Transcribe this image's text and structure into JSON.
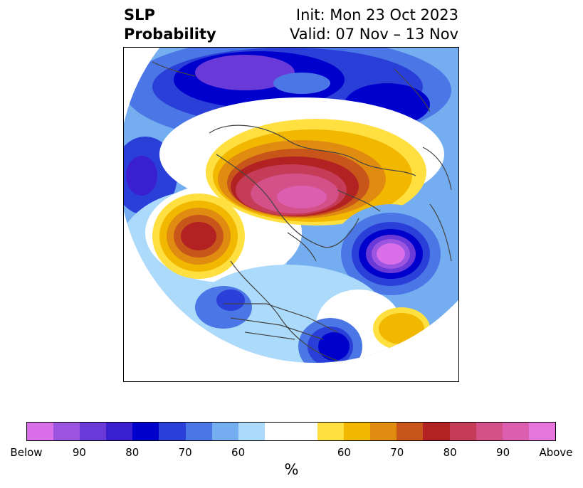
{
  "title": {
    "left_line1": "SLP",
    "left_line2": "Probability",
    "right_line1": "Init: Mon 23 Oct 2023",
    "right_line2": "Valid: 07 Nov – 13 Nov"
  },
  "colorbar": {
    "colors": [
      "#d86fe8",
      "#9c55e0",
      "#6a3ad8",
      "#3a1fd0",
      "#0000cc",
      "#2a3fd8",
      "#4a76e6",
      "#74aef0",
      "#acdafa",
      "#ffffff",
      "#ffffff",
      "#ffe040",
      "#f2b800",
      "#e08c10",
      "#c8561a",
      "#b22222",
      "#c43c58",
      "#d45088",
      "#dc5eae",
      "#e675dc"
    ],
    "tick_labels": [
      "Below",
      "90",
      "80",
      "70",
      "60",
      "60",
      "70",
      "80",
      "90",
      "Above"
    ],
    "unit_label": "%"
  }
}
